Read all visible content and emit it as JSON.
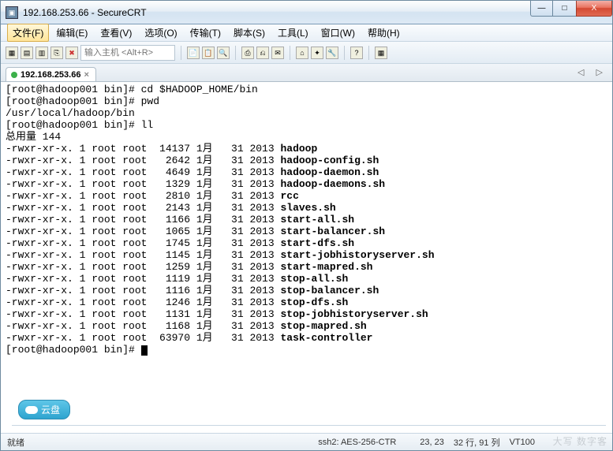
{
  "window": {
    "title": "192.168.253.66 - SecureCRT",
    "min_glyph": "—",
    "max_glyph": "□",
    "close_glyph": "X"
  },
  "menu": {
    "file": "文件(F)",
    "edit": "编辑(E)",
    "view": "查看(V)",
    "options": "选项(O)",
    "transfer": "传输(T)",
    "script": "脚本(S)",
    "tools": "工具(L)",
    "window": "窗口(W)",
    "help": "帮助(H)"
  },
  "toolbar": {
    "host_placeholder": "输入主机 <Alt+R>"
  },
  "tab": {
    "label": "192.168.253.66",
    "close": "×",
    "arrows": "◁  ▷"
  },
  "terminal": {
    "prompt": "[root@hadoop001 bin]# ",
    "cmd1": "cd $HADOOP_HOME/bin",
    "cmd2": "pwd",
    "pwd_out": "/usr/local/hadoop/bin",
    "cmd3": "ll",
    "total": "总用量 144",
    "rows": [
      {
        "perm": "-rwxr-xr-x.",
        "sz": "14137",
        "name": "hadoop"
      },
      {
        "perm": "-rwxr-xr-x.",
        "sz": " 2642",
        "name": "hadoop-config.sh"
      },
      {
        "perm": "-rwxr-xr-x.",
        "sz": " 4649",
        "name": "hadoop-daemon.sh"
      },
      {
        "perm": "-rwxr-xr-x.",
        "sz": " 1329",
        "name": "hadoop-daemons.sh"
      },
      {
        "perm": "-rwxr-xr-x.",
        "sz": " 2810",
        "name": "rcc"
      },
      {
        "perm": "-rwxr-xr-x.",
        "sz": " 2143",
        "name": "slaves.sh"
      },
      {
        "perm": "-rwxr-xr-x.",
        "sz": " 1166",
        "name": "start-all.sh"
      },
      {
        "perm": "-rwxr-xr-x.",
        "sz": " 1065",
        "name": "start-balancer.sh"
      },
      {
        "perm": "-rwxr-xr-x.",
        "sz": " 1745",
        "name": "start-dfs.sh"
      },
      {
        "perm": "-rwxr-xr-x.",
        "sz": " 1145",
        "name": "start-jobhistoryserver.sh"
      },
      {
        "perm": "-rwxr-xr-x.",
        "sz": " 1259",
        "name": "start-mapred.sh"
      },
      {
        "perm": "-rwxr-xr-x.",
        "sz": " 1119",
        "name": "stop-all.sh"
      },
      {
        "perm": "-rwxr-xr-x.",
        "sz": " 1116",
        "name": "stop-balancer.sh"
      },
      {
        "perm": "-rwxr-xr-x.",
        "sz": " 1246",
        "name": "stop-dfs.sh"
      },
      {
        "perm": "-rwxr-xr-x.",
        "sz": " 1131",
        "name": "stop-jobhistoryserver.sh"
      },
      {
        "perm": "-rwxr-xr-x.",
        "sz": " 1168",
        "name": "stop-mapred.sh"
      },
      {
        "perm": "-rwxr-xr-x.",
        "sz": "63970",
        "name": "task-controller"
      }
    ],
    "row_owner": "1 root root",
    "row_date": "1月   31 2013"
  },
  "cloud": {
    "label": "云盘"
  },
  "status": {
    "ready": "就绪",
    "cipher": "ssh2: AES-256-CTR",
    "pos": "23,  23",
    "size": "32 行, 91 列",
    "term": "VT100"
  },
  "watermark": "大写 数字客"
}
